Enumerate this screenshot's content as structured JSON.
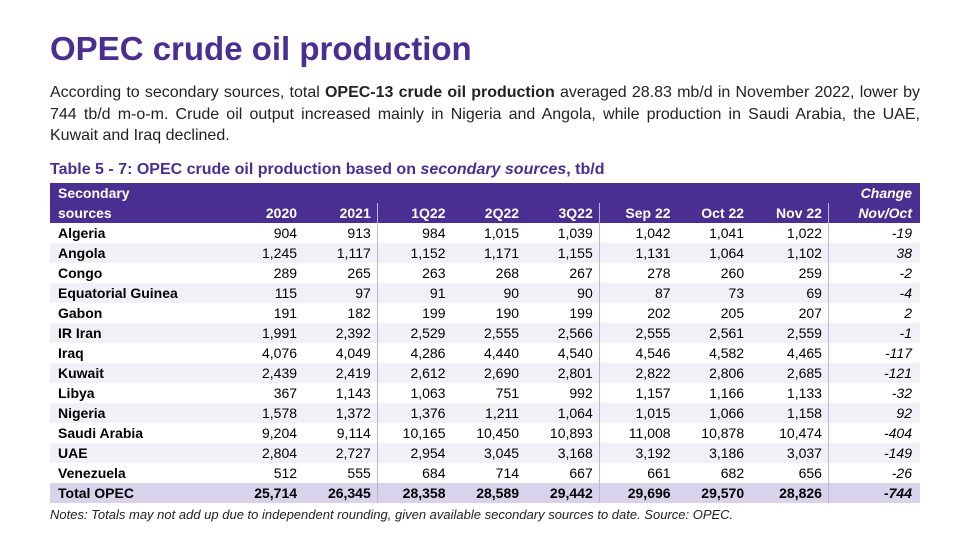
{
  "title": "OPEC crude oil production",
  "intro_pre": "According to secondary sources, total ",
  "intro_bold": "OPEC-13 crude oil production",
  "intro_post": " averaged 28.83 mb/d in November 2022, lower by 744 tb/d m-o-m. Crude oil output increased mainly in Nigeria and Angola, while production in Saudi Arabia, the UAE, Kuwait and Iraq declined.",
  "table_caption_pre": "Table 5 - 7: OPEC crude oil production based on ",
  "table_caption_italic": "secondary sources",
  "table_caption_post": ", tb/d",
  "header": {
    "col1_top": "Secondary",
    "col1_bot": "sources",
    "cols": [
      "2020",
      "2021",
      "1Q22",
      "2Q22",
      "3Q22",
      "Sep 22",
      "Oct 22",
      "Nov 22"
    ],
    "change_top": "Change",
    "change_bot": "Nov/Oct"
  },
  "rows": [
    {
      "country": "Algeria",
      "vals": [
        "904",
        "913",
        "984",
        "1,015",
        "1,039",
        "1,042",
        "1,041",
        "1,022"
      ],
      "change": "-19",
      "striped": false
    },
    {
      "country": "Angola",
      "vals": [
        "1,245",
        "1,117",
        "1,152",
        "1,171",
        "1,155",
        "1,131",
        "1,064",
        "1,102"
      ],
      "change": "38",
      "striped": true
    },
    {
      "country": "Congo",
      "vals": [
        "289",
        "265",
        "263",
        "268",
        "267",
        "278",
        "260",
        "259"
      ],
      "change": "-2",
      "striped": false
    },
    {
      "country": "Equatorial Guinea",
      "vals": [
        "115",
        "97",
        "91",
        "90",
        "90",
        "87",
        "73",
        "69"
      ],
      "change": "-4",
      "striped": true
    },
    {
      "country": "Gabon",
      "vals": [
        "191",
        "182",
        "199",
        "190",
        "199",
        "202",
        "205",
        "207"
      ],
      "change": "2",
      "striped": false
    },
    {
      "country": "IR Iran",
      "vals": [
        "1,991",
        "2,392",
        "2,529",
        "2,555",
        "2,566",
        "2,555",
        "2,561",
        "2,559"
      ],
      "change": "-1",
      "striped": true
    },
    {
      "country": "Iraq",
      "vals": [
        "4,076",
        "4,049",
        "4,286",
        "4,440",
        "4,540",
        "4,546",
        "4,582",
        "4,465"
      ],
      "change": "-117",
      "striped": false
    },
    {
      "country": "Kuwait",
      "vals": [
        "2,439",
        "2,419",
        "2,612",
        "2,690",
        "2,801",
        "2,822",
        "2,806",
        "2,685"
      ],
      "change": "-121",
      "striped": true
    },
    {
      "country": "Libya",
      "vals": [
        "367",
        "1,143",
        "1,063",
        "751",
        "992",
        "1,157",
        "1,166",
        "1,133"
      ],
      "change": "-32",
      "striped": false
    },
    {
      "country": "Nigeria",
      "vals": [
        "1,578",
        "1,372",
        "1,376",
        "1,211",
        "1,064",
        "1,015",
        "1,066",
        "1,158"
      ],
      "change": "92",
      "striped": true
    },
    {
      "country": "Saudi Arabia",
      "vals": [
        "9,204",
        "9,114",
        "10,165",
        "10,450",
        "10,893",
        "11,008",
        "10,878",
        "10,474"
      ],
      "change": "-404",
      "striped": false
    },
    {
      "country": "UAE",
      "vals": [
        "2,804",
        "2,727",
        "2,954",
        "3,045",
        "3,168",
        "3,192",
        "3,186",
        "3,037"
      ],
      "change": "-149",
      "striped": true
    },
    {
      "country": "Venezuela",
      "vals": [
        "512",
        "555",
        "684",
        "714",
        "667",
        "661",
        "682",
        "656"
      ],
      "change": "-26",
      "striped": false
    }
  ],
  "total": {
    "label": "Total  OPEC",
    "vals": [
      "25,714",
      "26,345",
      "28,358",
      "28,589",
      "29,442",
      "29,696",
      "29,570",
      "28,826"
    ],
    "change": "-744"
  },
  "notes": "Notes: Totals may not add up due to independent rounding, given available secondary sources to date. Source: OPEC."
}
